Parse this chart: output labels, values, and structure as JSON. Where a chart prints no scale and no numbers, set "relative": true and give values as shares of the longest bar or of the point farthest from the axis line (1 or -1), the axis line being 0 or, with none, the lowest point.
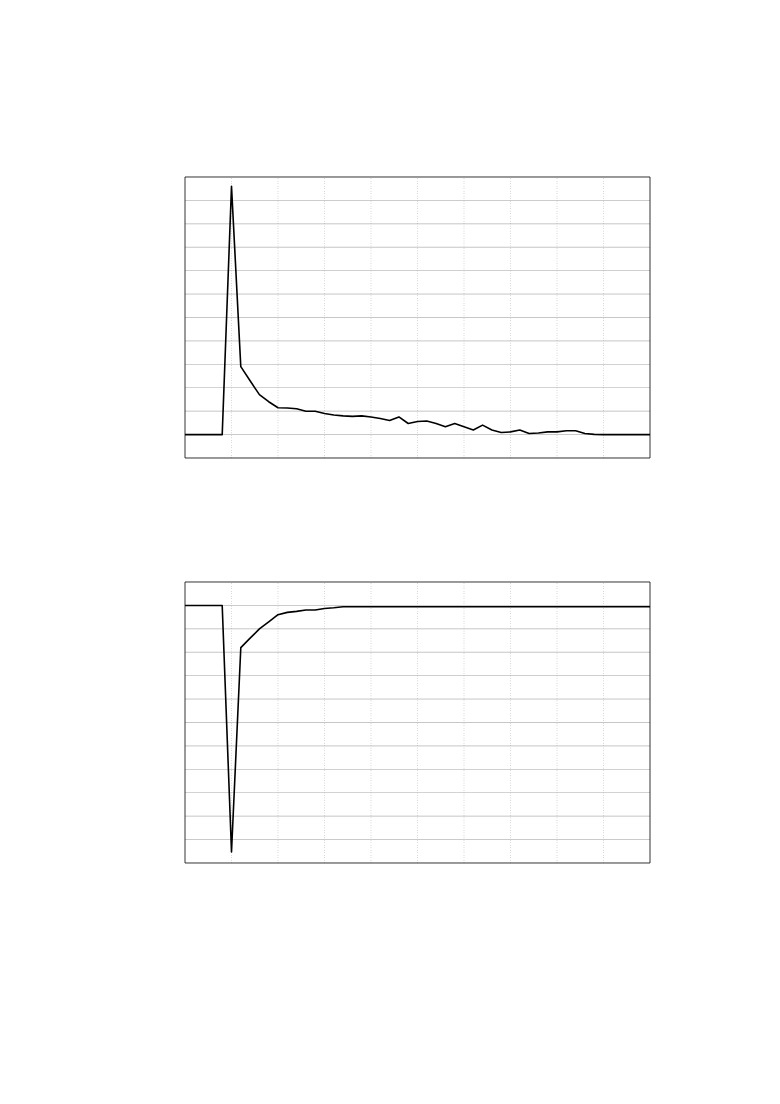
{
  "chart_data": [
    {
      "type": "line",
      "relative": true,
      "grid": true,
      "categories": [
        null,
        null,
        null,
        null,
        null,
        null,
        null,
        null,
        null,
        null,
        null,
        null,
        null,
        null,
        null,
        null,
        null,
        null,
        null,
        null,
        null,
        null,
        null,
        null,
        null,
        null,
        null,
        null,
        null,
        null,
        null,
        null,
        null,
        null,
        null,
        null,
        null,
        null,
        null,
        null,
        null,
        null,
        null,
        null,
        null,
        null,
        null,
        null,
        null,
        null,
        null
      ],
      "series": [
        {
          "color": "#000000",
          "values": [
            0.086,
            0.086,
            0.086,
            0.086,
            0.086,
            1,
            0.336,
            0.284,
            0.233,
            0.207,
            0.185,
            0.184,
            0.181,
            0.172,
            0.172,
            0.164,
            0.158,
            0.155,
            0.153,
            0.155,
            0.151,
            0.145,
            0.138,
            0.151,
            0.127,
            0.134,
            0.136,
            0.127,
            0.115,
            0.127,
            0.115,
            0.103,
            0.121,
            0.103,
            0.094,
            0.096,
            0.103,
            0.09,
            0.092,
            0.096,
            0.096,
            0.1,
            0.1,
            0.09,
            0.087,
            0.086,
            0.086,
            0.086,
            0.086,
            0.086,
            0.086
          ]
        }
      ]
    },
    {
      "type": "line",
      "relative": true,
      "grid": true,
      "categories": [
        null,
        null,
        null,
        null,
        null,
        null,
        null,
        null,
        null,
        null,
        null,
        null,
        null,
        null,
        null,
        null,
        null,
        null,
        null,
        null,
        null,
        null,
        null,
        null,
        null,
        null,
        null,
        null,
        null,
        null,
        null,
        null,
        null,
        null,
        null,
        null,
        null,
        null,
        null,
        null,
        null,
        null,
        null,
        null,
        null,
        null,
        null,
        null,
        null,
        null,
        null
      ],
      "series": [
        {
          "color": "#000000",
          "values": [
            1,
            1,
            1,
            1,
            1,
            0.043,
            0.836,
            0.873,
            0.909,
            0.936,
            0.964,
            0.973,
            0.977,
            0.982,
            0.982,
            0.988,
            0.991,
            0.995,
            0.995,
            0.995,
            0.995,
            0.995,
            0.995,
            0.995,
            0.995,
            0.995,
            0.995,
            0.995,
            0.995,
            0.995,
            0.995,
            0.995,
            0.995,
            0.995,
            0.995,
            0.995,
            0.995,
            0.995,
            0.995,
            0.995,
            0.995,
            0.995,
            0.995,
            0.995,
            0.995,
            0.995,
            0.995,
            0.995,
            0.995,
            0.995,
            0.995
          ]
        }
      ]
    }
  ]
}
